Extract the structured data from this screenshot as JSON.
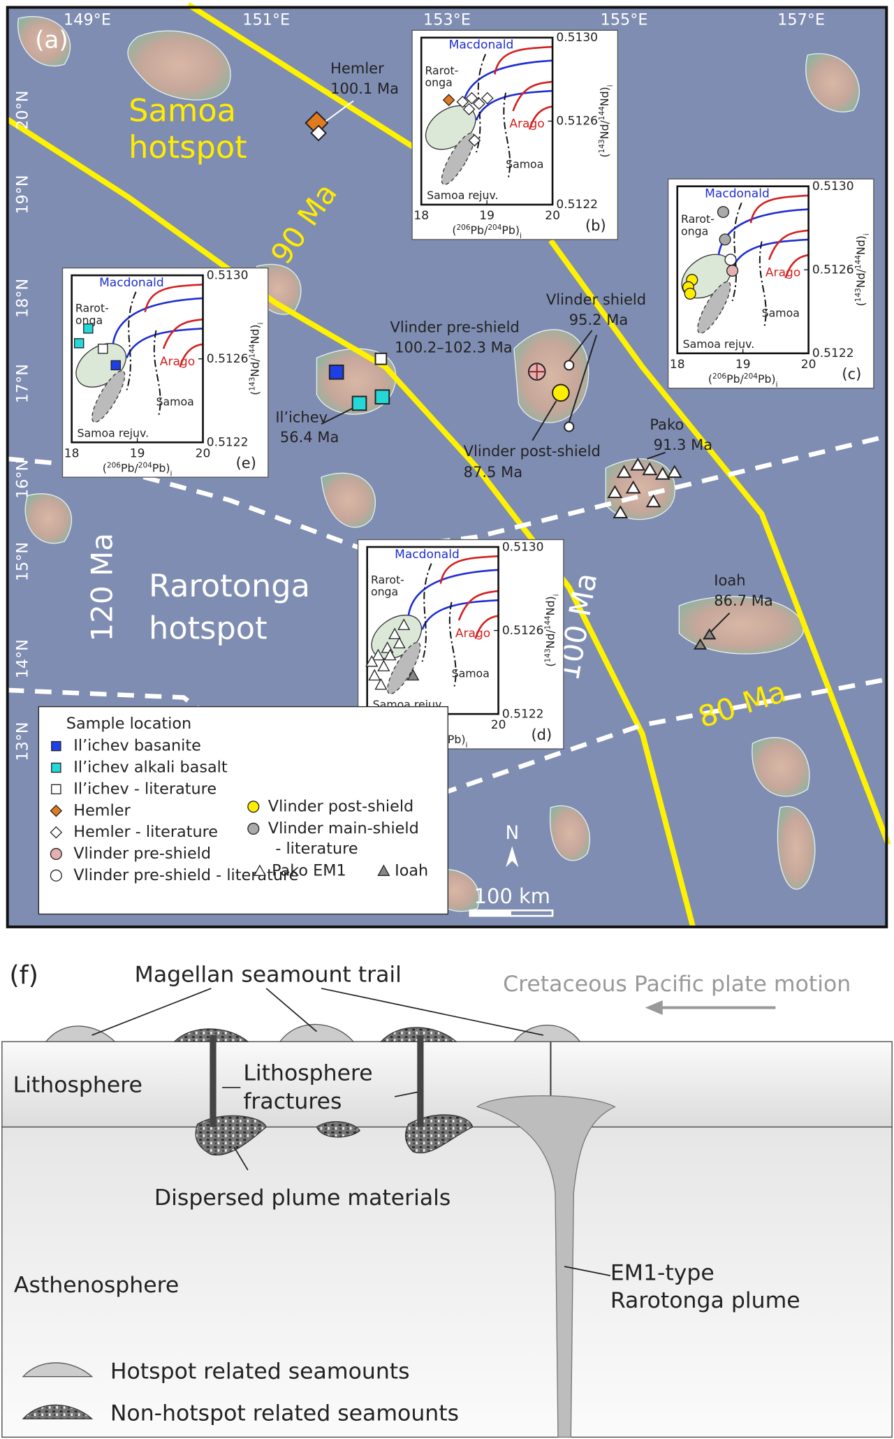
{
  "map": {
    "panel_label": "(a)",
    "lon_labels": [
      "149°E",
      "151°E",
      "153°E",
      "155°E",
      "157°E"
    ],
    "lat_labels": [
      "20°N",
      "19°N",
      "18°N",
      "17°N",
      "16°N",
      "15°N",
      "14°N",
      "13°N"
    ],
    "samoa_hotspot": [
      "Samoa",
      "hotspot"
    ],
    "rarotonga_hotspot": [
      "Rarotonga",
      "hotspot"
    ],
    "ages": [
      "90 Ma",
      "100 Ma",
      "120 Ma",
      "80 Ma"
    ],
    "sites": {
      "hemler": [
        "Hemler",
        "100.1 Ma"
      ],
      "vlinder_pre": [
        "Vlinder pre-shield",
        "100.2–102.3 Ma"
      ],
      "vlinder_shield": [
        "Vlinder shield",
        "95.2 Ma"
      ],
      "vlinder_post": [
        "Vlinder post-shield",
        "87.5 Ma"
      ],
      "ilichev": [
        "Il’ichev",
        "56.4 Ma"
      ],
      "pako": [
        "Pako",
        "91.3 Ma"
      ],
      "ioah": [
        "Ioah",
        "86.7 Ma"
      ]
    },
    "north": "N",
    "scale": "100 km"
  },
  "legend": {
    "title": "Sample location",
    "items": [
      "Il’ichev basanite",
      "Il’ichev alkali basalt",
      "Il’ichev - literature",
      "Hemler",
      "Hemler - literature",
      "Vlinder pre-shield",
      "Vlinder pre-shield - literature"
    ],
    "post_shield": "Vlinder post-shield",
    "main_shield": [
      "Vlinder main-shield",
      "- literature"
    ],
    "pako": "Pako EM1",
    "ioah": "Ioah"
  },
  "inset_axes": {
    "xticks": [
      "18",
      "19",
      "20"
    ],
    "yticks": [
      "0.5130",
      "0.5126",
      "0.5122"
    ],
    "xlabel": [
      "(",
      "206",
      "Pb/",
      "204",
      "Pb)",
      "i"
    ],
    "ylabel": [
      "(",
      "143",
      "Nd/",
      "144",
      "Nd)",
      "i"
    ],
    "regions": {
      "macdonald": "Macdonald",
      "rarotonga": [
        "Rarot-",
        "onga"
      ],
      "arago": "Arago",
      "samoa": "Samoa",
      "samoa_rejuv": "Samoa rejuv."
    }
  },
  "insets": [
    {
      "label": "(b)"
    },
    {
      "label": "(c)"
    },
    {
      "label": "(d)"
    },
    {
      "label": "(e)"
    }
  ],
  "section": {
    "panel_label": "(f)",
    "trail": "Magellan seamount trail",
    "motion": "Cretaceous Pacific plate motion",
    "lithosphere": "Lithosphere",
    "fractures": [
      "Lithosphere",
      "fractures"
    ],
    "dispersed": "Dispersed plume materials",
    "asthenosphere": "Asthenosphere",
    "plume": [
      "EM1-type",
      "Rarotonga plume"
    ],
    "legend": [
      "Hotspot related seamounts",
      "Non-hotspot related seamounts"
    ]
  }
}
